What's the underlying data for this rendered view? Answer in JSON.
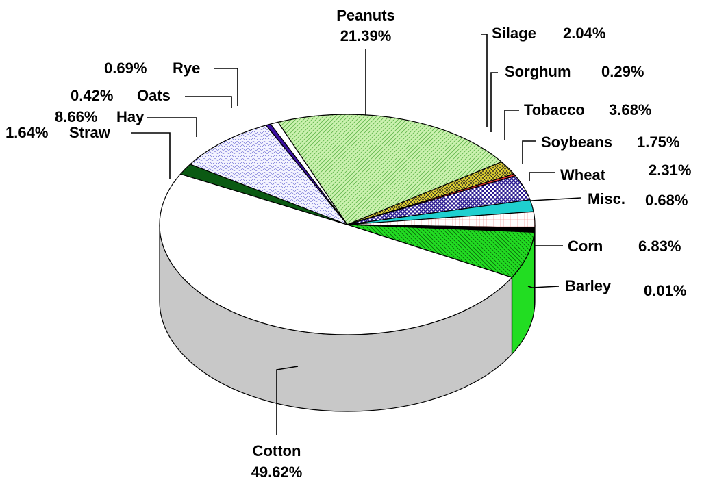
{
  "chart_data": {
    "type": "pie",
    "title": "",
    "start_angle_deg": -111.65,
    "direction": "clockwise",
    "slices": [
      {
        "name": "Peanuts",
        "value": 21.39,
        "color": "#ccf2b0",
        "pattern": "diag-green"
      },
      {
        "name": "Silage",
        "value": 2.04,
        "color": "#e8d832",
        "pattern": "grid-yellow"
      },
      {
        "name": "Sorghum",
        "value": 0.29,
        "color": "#e03030",
        "pattern": "solid"
      },
      {
        "name": "Tobacco",
        "value": 3.68,
        "color": "#3c2aa0",
        "pattern": "cross-navy"
      },
      {
        "name": "Soybeans",
        "value": 1.75,
        "color": "#1fcfcf",
        "pattern": "solid"
      },
      {
        "name": "Wheat",
        "value": 2.31,
        "color": "#ffe8e8",
        "pattern": "grid-pink"
      },
      {
        "name": "Misc.",
        "value": 0.68,
        "color": "#000000",
        "pattern": "solid"
      },
      {
        "name": "Corn",
        "value": 6.83,
        "color": "#22dd22",
        "pattern": "diag-dkgreen"
      },
      {
        "name": "Barley",
        "value": 0.01,
        "color": "#22dd22",
        "pattern": "solid"
      },
      {
        "name": "Cotton",
        "value": 49.62,
        "color": "#ffffff",
        "pattern": "solid"
      },
      {
        "name": "Straw",
        "value": 1.64,
        "color": "#0b5a13",
        "pattern": "solid"
      },
      {
        "name": "Hay",
        "value": 8.66,
        "color": "#eeeeff",
        "pattern": "wave-blue"
      },
      {
        "name": "Oats",
        "value": 0.42,
        "color": "#3a10a0",
        "pattern": "solid"
      },
      {
        "name": "Rye",
        "value": 0.69,
        "color": "#ffffff",
        "pattern": "solid"
      }
    ],
    "labels": {
      "Peanuts": {
        "name": "Peanuts",
        "pct": "21.39%"
      },
      "Silage": {
        "name": "Silage",
        "pct": "2.04%"
      },
      "Sorghum": {
        "name": "Sorghum",
        "pct": "0.29%"
      },
      "Tobacco": {
        "name": "Tobacco",
        "pct": "3.68%"
      },
      "Soybeans": {
        "name": "Soybeans",
        "pct": "1.75%"
      },
      "Wheat": {
        "name": "Wheat",
        "pct": "2.31%"
      },
      "Misc": {
        "name": "Misc.",
        "pct": "0.68%"
      },
      "Corn": {
        "name": "Corn",
        "pct": "6.83%"
      },
      "Barley": {
        "name": "Barley",
        "pct": "0.01%"
      },
      "Cotton": {
        "name": "Cotton",
        "pct": "49.62%"
      },
      "Straw": {
        "name": "Straw",
        "pct": "1.64%"
      },
      "Hay": {
        "name": "Hay",
        "pct": "8.66%"
      },
      "Oats": {
        "name": "Oats",
        "pct": "0.42%"
      },
      "Rye": {
        "name": "Rye",
        "pct": "0.69%"
      }
    },
    "side_color": "#c8c8c8",
    "legend": "none"
  }
}
